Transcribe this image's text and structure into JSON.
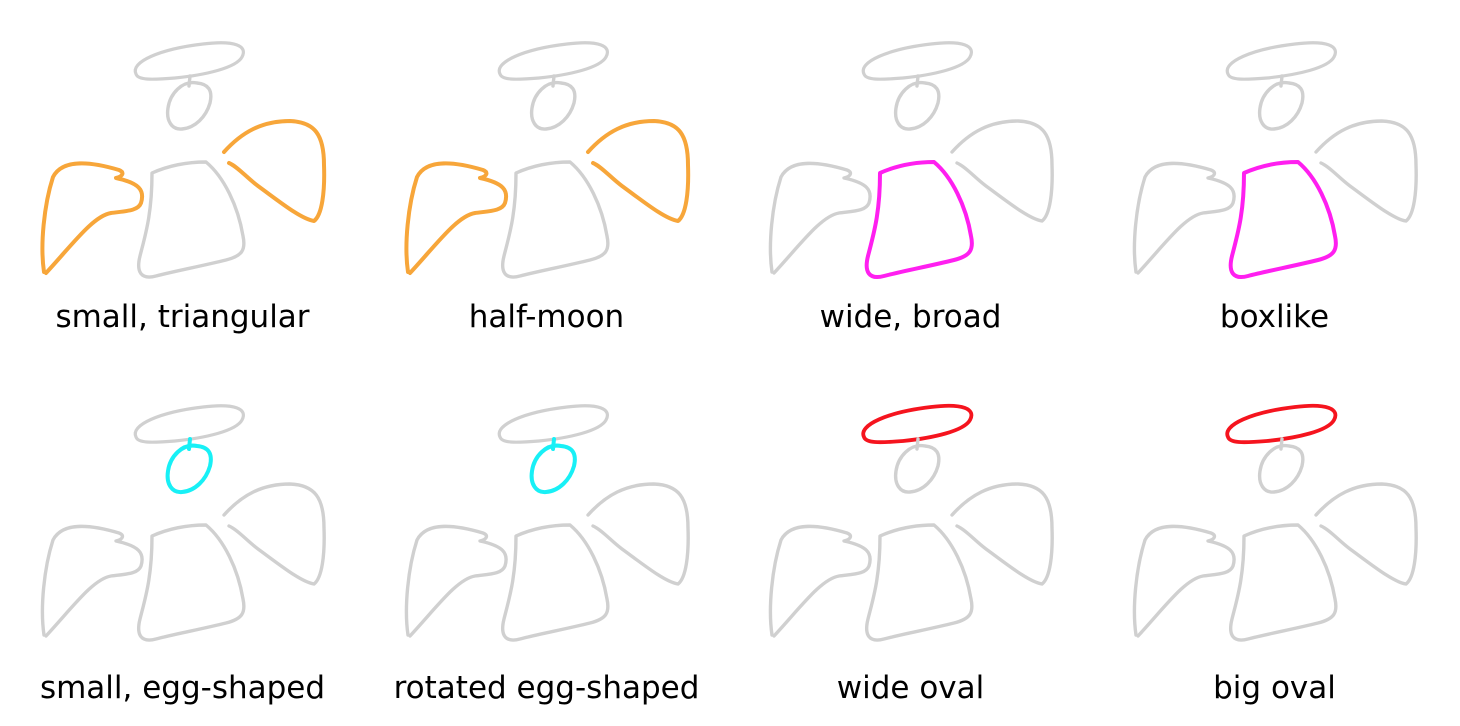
{
  "base_color": "#d0d0d0",
  "panels": [
    {
      "caption": "small, triangular",
      "highlight": [
        "left-lobe",
        "right-lobe"
      ],
      "color": "#f7a63a"
    },
    {
      "caption": "half-moon",
      "highlight": [
        "left-lobe",
        "right-lobe"
      ],
      "color": "#f7a63a"
    },
    {
      "caption": "wide, broad",
      "highlight": [
        "trunk"
      ],
      "color": "#ff1ff0"
    },
    {
      "caption": "boxlike",
      "highlight": [
        "trunk"
      ],
      "color": "#ff1ff0"
    },
    {
      "caption": "small, egg-shaped",
      "highlight": [
        "egg"
      ],
      "color": "#18f0f6"
    },
    {
      "caption": "rotated egg-shaped",
      "highlight": [
        "egg"
      ],
      "color": "#18f0f6"
    },
    {
      "caption": "wide oval",
      "highlight": [
        "top-oval"
      ],
      "color": "#f5141e"
    },
    {
      "caption": "big oval",
      "highlight": [
        "top-oval"
      ],
      "color": "#f5141e"
    }
  ]
}
